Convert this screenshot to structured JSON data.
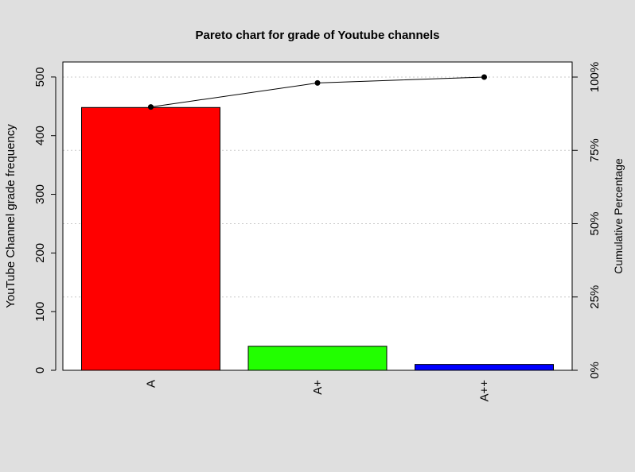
{
  "chart_data": {
    "type": "bar",
    "title": "Pareto chart for grade of Youtube channels",
    "ylabel": "YouTube Channel grade frequency",
    "y2label": "Cumulative Percentage",
    "categories": [
      "A",
      "A+",
      "A++"
    ],
    "values": [
      448,
      41,
      10
    ],
    "bar_colors": [
      "#ff0000",
      "#22ff00",
      "#0000ff"
    ],
    "cumulative_percent": [
      89.8,
      98.0,
      100.0
    ],
    "ylim": [
      0,
      525
    ],
    "yticks": [
      0,
      100,
      200,
      300,
      400,
      500
    ],
    "y2ticks": [
      "0%",
      "25%",
      "50%",
      "75%",
      "100%"
    ],
    "grid": "dotted horizontal at cumulative ticks",
    "line_marker": "filled circle"
  },
  "colors": {
    "background": "#dfdfdf",
    "plot_background": "#ffffff",
    "grid": "#c8c8c8",
    "line": "#000000"
  }
}
